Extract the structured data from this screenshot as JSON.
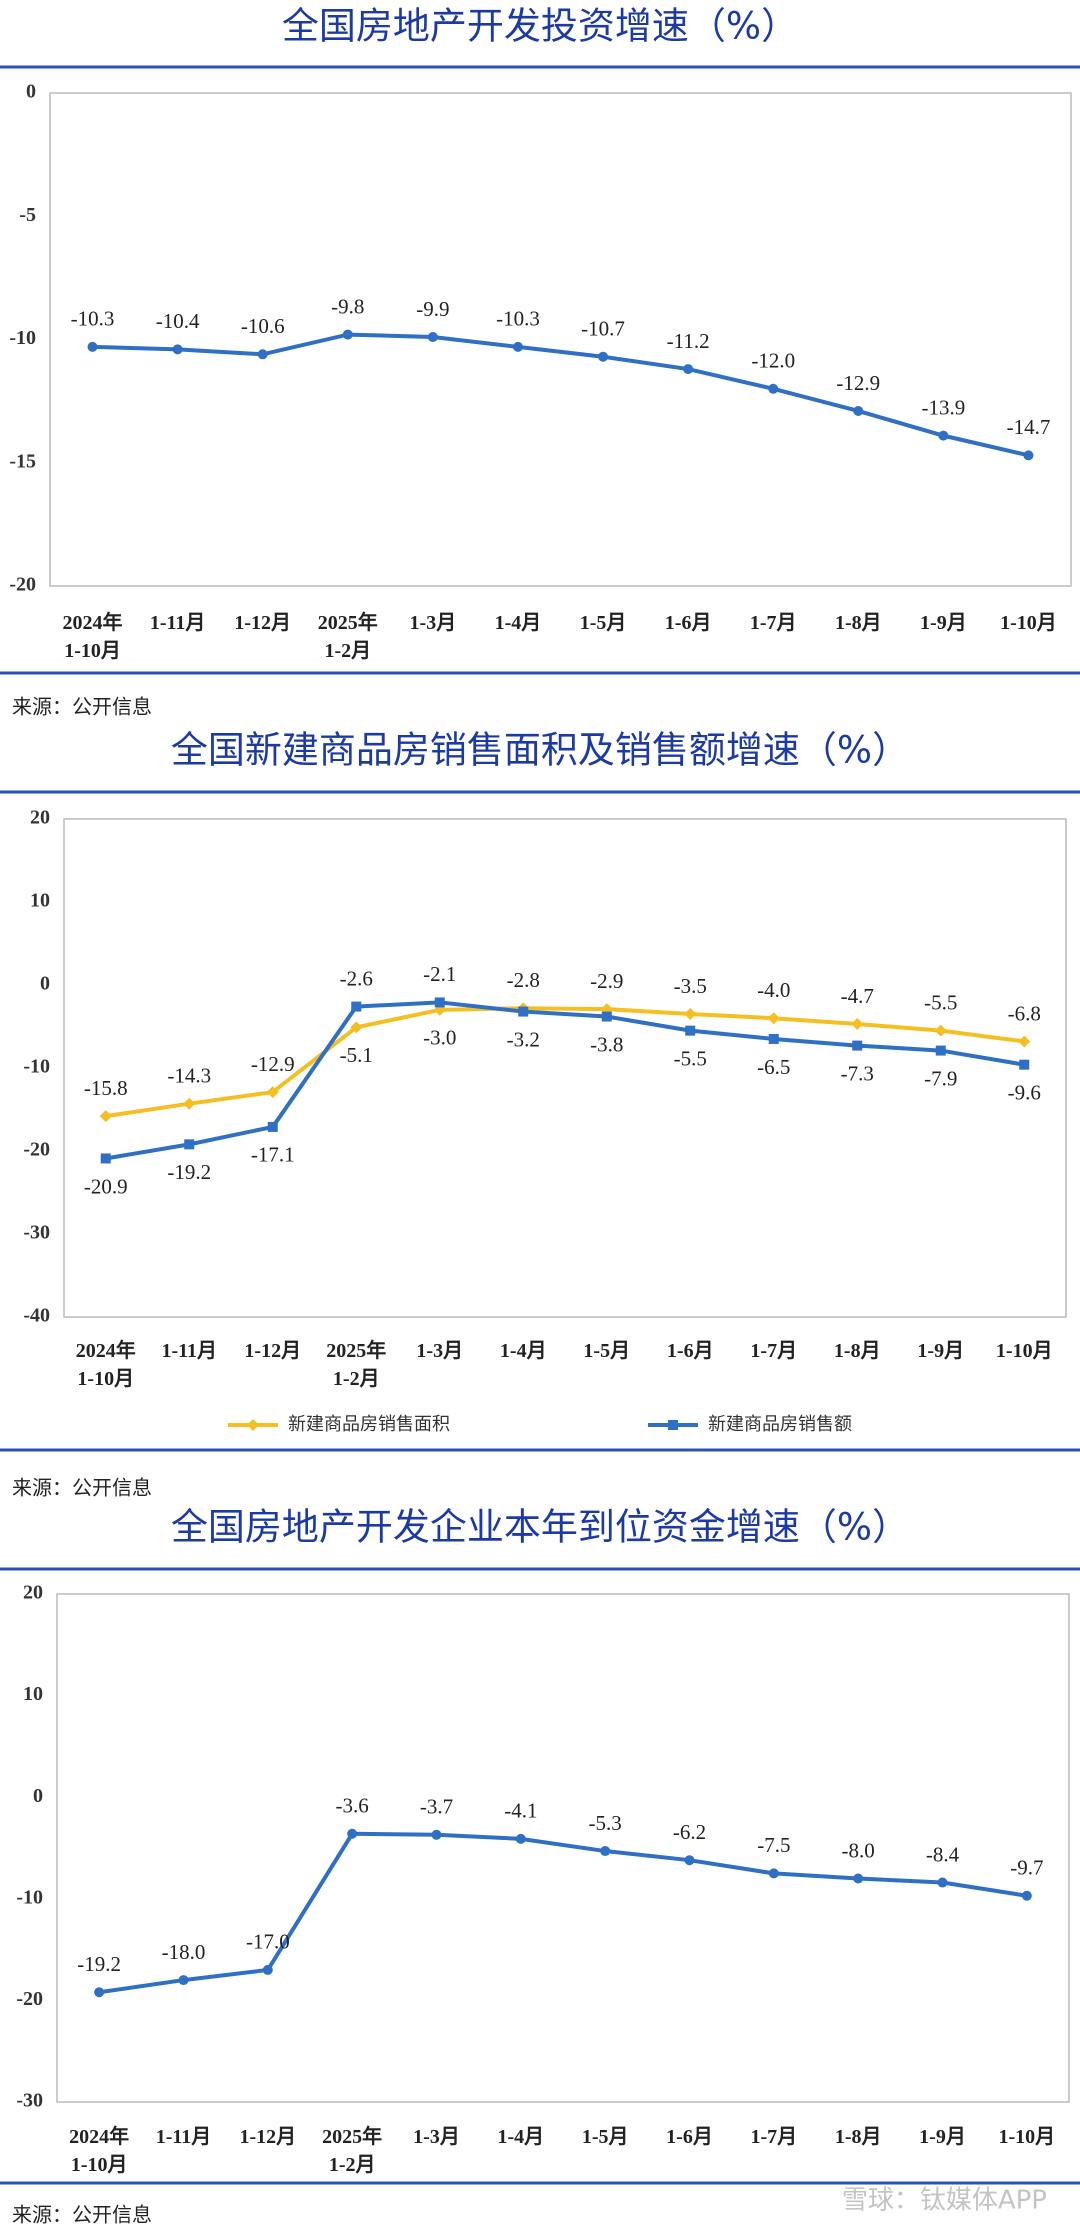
{
  "chart_data": [
    {
      "type": "line",
      "title": "全国房地产开发投资增速（%）",
      "source": "来源：公开信息",
      "categories": [
        "2024年\n1-10月",
        "1-11月",
        "1-12月",
        "2025年\n1-2月",
        "1-3月",
        "1-4月",
        "1-5月",
        "1-6月",
        "1-7月",
        "1-8月",
        "1-9月",
        "1-10月"
      ],
      "series": [
        {
          "name": null,
          "color": "#2f6fc4",
          "marker": "circle",
          "values": [
            -10.3,
            -10.4,
            -10.6,
            -9.8,
            -9.9,
            -10.3,
            -10.7,
            -11.2,
            -12.0,
            -12.9,
            -13.9,
            -14.7
          ],
          "value_labels": [
            "-10.3",
            "-10.4",
            "-10.6",
            "-9.8",
            "-9.9",
            "-10.3",
            "-10.7",
            "-11.2",
            "-12.0",
            "-12.9",
            "-13.9",
            "-14.7"
          ]
        }
      ],
      "ylim": [
        -20,
        0
      ],
      "yticks": [
        0,
        -5,
        -10,
        -15,
        -20
      ],
      "grid": false
    },
    {
      "type": "line",
      "title": "全国新建商品房销售面积及销售额增速（%）",
      "source": "来源：公开信息",
      "legend": "bottom",
      "categories": [
        "2024年\n1-10月",
        "1-11月",
        "1-12月",
        "2025年\n1-2月",
        "1-3月",
        "1-4月",
        "1-5月",
        "1-6月",
        "1-7月",
        "1-8月",
        "1-9月",
        "1-10月"
      ],
      "series": [
        {
          "name": "新建商品房销售面积",
          "color": "#f5bf22",
          "marker": "diamond",
          "values": [
            -15.8,
            -14.3,
            -12.9,
            -5.1,
            -3.0,
            -2.8,
            -2.9,
            -3.5,
            -4.0,
            -4.7,
            -5.5,
            -6.8
          ],
          "value_labels": [
            "-15.8",
            "-14.3",
            "-12.9",
            "-5.1",
            "-3.0",
            "-2.8",
            "-2.9",
            "-3.5",
            "-4.0",
            "-4.7",
            "-5.5",
            "-6.8"
          ]
        },
        {
          "name": "新建商品房销售额",
          "color": "#2f6fc4",
          "marker": "square",
          "values": [
            -20.9,
            -19.2,
            -17.1,
            -2.6,
            -2.1,
            -3.2,
            -3.8,
            -5.5,
            -6.5,
            -7.3,
            -7.9,
            -9.6
          ],
          "value_labels": [
            "-20.9",
            "-19.2",
            "-17.1",
            "-2.6",
            "-2.1",
            "-3.2",
            "-3.8",
            "-5.5",
            "-6.5",
            "-7.3",
            "-7.9",
            "-9.6"
          ]
        }
      ],
      "ylim": [
        -40,
        20
      ],
      "yticks": [
        20,
        10,
        0,
        -10,
        -20,
        -30,
        -40
      ],
      "grid": false
    },
    {
      "type": "line",
      "title": "全国房地产开发企业本年到位资金增速（%）",
      "source": "来源：公开信息",
      "categories": [
        "2024年\n1-10月",
        "1-11月",
        "1-12月",
        "2025年\n1-2月",
        "1-3月",
        "1-4月",
        "1-5月",
        "1-6月",
        "1-7月",
        "1-8月",
        "1-9月",
        "1-10月"
      ],
      "series": [
        {
          "name": null,
          "color": "#2f6fc4",
          "marker": "circle",
          "values": [
            -19.2,
            -18.0,
            -17.0,
            -3.6,
            -3.7,
            -4.1,
            -5.3,
            -6.2,
            -7.5,
            -8.0,
            -8.4,
            -9.7
          ],
          "value_labels": [
            "-19.2",
            "-18.0",
            "-17.0",
            "-3.6",
            "-3.7",
            "-4.1",
            "-5.3",
            "-6.2",
            "-7.5",
            "-8.0",
            "-8.4",
            "-9.7"
          ]
        }
      ],
      "ylim": [
        -30,
        20
      ],
      "yticks": [
        20,
        10,
        0,
        -10,
        -20,
        -30
      ],
      "grid": false
    }
  ],
  "watermark": "雪球：钛媒体APP"
}
